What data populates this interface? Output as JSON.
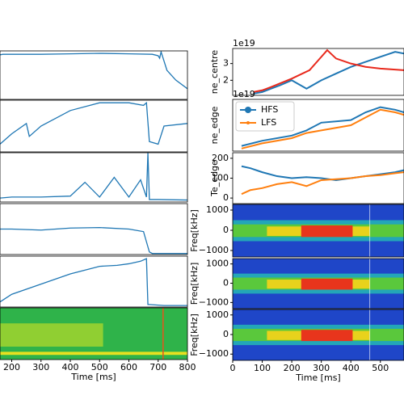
{
  "chart_data": [
    {
      "type": "line",
      "xlim": [
        160,
        800
      ],
      "ylim": [
        0,
        1
      ],
      "series": [
        {
          "color": "#1f77b4",
          "x": [
            160,
            170,
            200,
            300,
            400,
            500,
            600,
            680,
            700,
            705,
            710,
            730,
            760,
            800
          ],
          "values": [
            0.92,
            0.93,
            0.93,
            0.93,
            0.94,
            0.95,
            0.94,
            0.93,
            0.9,
            0.85,
            0.98,
            0.6,
            0.4,
            0.22
          ]
        }
      ]
    },
    {
      "type": "line",
      "xlim": [
        160,
        800
      ],
      "ylim": [
        0,
        1
      ],
      "series": [
        {
          "color": "#1f77b4",
          "x": [
            160,
            200,
            250,
            260,
            300,
            400,
            500,
            600,
            650,
            660,
            670,
            700,
            720,
            800
          ],
          "values": [
            0.15,
            0.35,
            0.55,
            0.3,
            0.5,
            0.8,
            0.95,
            0.95,
            0.9,
            0.95,
            0.2,
            0.15,
            0.5,
            0.55
          ]
        }
      ]
    },
    {
      "type": "line",
      "xlim": [
        160,
        800
      ],
      "ylim": [
        0,
        1
      ],
      "series": [
        {
          "color": "#1f77b4",
          "x": [
            160,
            200,
            300,
            400,
            450,
            500,
            550,
            600,
            640,
            660,
            665,
            670,
            700,
            800
          ],
          "values": [
            0.08,
            0.1,
            0.1,
            0.12,
            0.4,
            0.1,
            0.5,
            0.1,
            0.45,
            0.1,
            1.0,
            0.05,
            0.05,
            0.04
          ]
        }
      ]
    },
    {
      "type": "line",
      "xlim": [
        160,
        800
      ],
      "ylim": [
        0,
        1
      ],
      "series": [
        {
          "color": "#1f77b4",
          "x": [
            160,
            200,
            300,
            400,
            500,
            600,
            650,
            660,
            670,
            680,
            800
          ],
          "values": [
            0.5,
            0.5,
            0.48,
            0.52,
            0.53,
            0.5,
            0.45,
            0.25,
            0.05,
            0.02,
            0.02
          ]
        }
      ]
    },
    {
      "type": "line",
      "xlim": [
        160,
        800
      ],
      "ylim": [
        0,
        1
      ],
      "series": [
        {
          "color": "#1f77b4",
          "x": [
            160,
            200,
            300,
            400,
            500,
            560,
            600,
            640,
            660,
            665,
            670,
            720,
            800
          ],
          "values": [
            0.1,
            0.25,
            0.45,
            0.65,
            0.8,
            0.82,
            0.85,
            0.9,
            0.95,
            0.05,
            0.05,
            0.03,
            0.03
          ]
        }
      ]
    },
    {
      "type": "spectrogram",
      "palette": "green",
      "xlim": [
        160,
        800
      ],
      "xticks": [
        200,
        300,
        400,
        500,
        600,
        700,
        800
      ],
      "xlabel": "Time [ms]"
    },
    {
      "type": "line",
      "ylabel": "ne_centre",
      "offset_label": "1e19",
      "xlim": [
        0,
        580
      ],
      "ylim": [
        1.1,
        3.9
      ],
      "yticks": [
        2,
        3
      ],
      "series": [
        {
          "color": "#1f77b4",
          "x": [
            70,
            100,
            130,
            160,
            200,
            250,
            300,
            350,
            400,
            450,
            500,
            550,
            580
          ],
          "values": [
            1.2,
            1.3,
            1.5,
            1.7,
            2.0,
            1.5,
            2.0,
            2.4,
            2.8,
            3.1,
            3.4,
            3.7,
            3.6
          ]
        },
        {
          "color": "#e8291c",
          "x": [
            70,
            100,
            130,
            200,
            260,
            300,
            320,
            350,
            400,
            450,
            500,
            580
          ],
          "values": [
            1.3,
            1.4,
            1.6,
            2.1,
            2.6,
            3.4,
            3.8,
            3.3,
            3.0,
            2.8,
            2.7,
            2.6
          ]
        }
      ]
    },
    {
      "type": "line",
      "ylabel": "ne_edge",
      "offset_label": "1e19",
      "legend": "upper left",
      "xlim": [
        0,
        580
      ],
      "ylim": [
        0,
        1
      ],
      "series": [
        {
          "name": "HFS",
          "color": "#1f77b4",
          "x": [
            30,
            100,
            200,
            250,
            300,
            400,
            450,
            500,
            550,
            580
          ],
          "values": [
            0.1,
            0.2,
            0.3,
            0.4,
            0.55,
            0.6,
            0.75,
            0.85,
            0.8,
            0.75
          ]
        },
        {
          "name": "LFS",
          "color": "#ff7f0e",
          "x": [
            30,
            100,
            200,
            250,
            300,
            400,
            450,
            500,
            550,
            580
          ],
          "values": [
            0.05,
            0.15,
            0.25,
            0.35,
            0.4,
            0.5,
            0.65,
            0.8,
            0.75,
            0.7
          ]
        }
      ]
    },
    {
      "type": "line",
      "ylabel": "Te_edge",
      "xlim": [
        0,
        580
      ],
      "ylim": [
        -28,
        228
      ],
      "yticks": [
        0,
        100,
        200
      ],
      "series": [
        {
          "color": "#1f77b4",
          "x": [
            30,
            60,
            100,
            150,
            200,
            250,
            300,
            350,
            400,
            450,
            500,
            550,
            580
          ],
          "values": [
            160,
            150,
            130,
            110,
            100,
            105,
            100,
            90,
            100,
            110,
            120,
            130,
            140
          ]
        },
        {
          "color": "#ff7f0e",
          "x": [
            30,
            60,
            100,
            150,
            200,
            250,
            300,
            350,
            400,
            450,
            500,
            550,
            580
          ],
          "values": [
            20,
            40,
            50,
            70,
            80,
            60,
            90,
            95,
            100,
            110,
            115,
            125,
            130
          ]
        }
      ]
    },
    {
      "type": "spectrogram",
      "palette": "jet",
      "ylabel": "Freq[kHz]",
      "xlim": [
        0,
        580
      ],
      "ylim": [
        -1320,
        1280
      ],
      "yticks": [
        1000,
        0,
        {
          "value": -1000,
          "label": "−1000"
        }
      ]
    },
    {
      "type": "spectrogram",
      "palette": "jet",
      "ylabel": "Freq[kHz]",
      "xlim": [
        0,
        580
      ],
      "ylim": [
        -1320,
        1280
      ],
      "yticks": [
        1000,
        0,
        {
          "value": -1000,
          "label": "−1000"
        }
      ]
    },
    {
      "type": "spectrogram",
      "palette": "jet",
      "ylabel": "Freq[kHz]",
      "xlim": [
        0,
        580
      ],
      "ylim": [
        -1320,
        1280
      ],
      "yticks": [
        1000,
        0,
        {
          "value": -1000,
          "label": "−1000"
        }
      ],
      "xticks": [
        0,
        100,
        200,
        300,
        400,
        500
      ],
      "xlabel": "Time [ms]"
    }
  ]
}
